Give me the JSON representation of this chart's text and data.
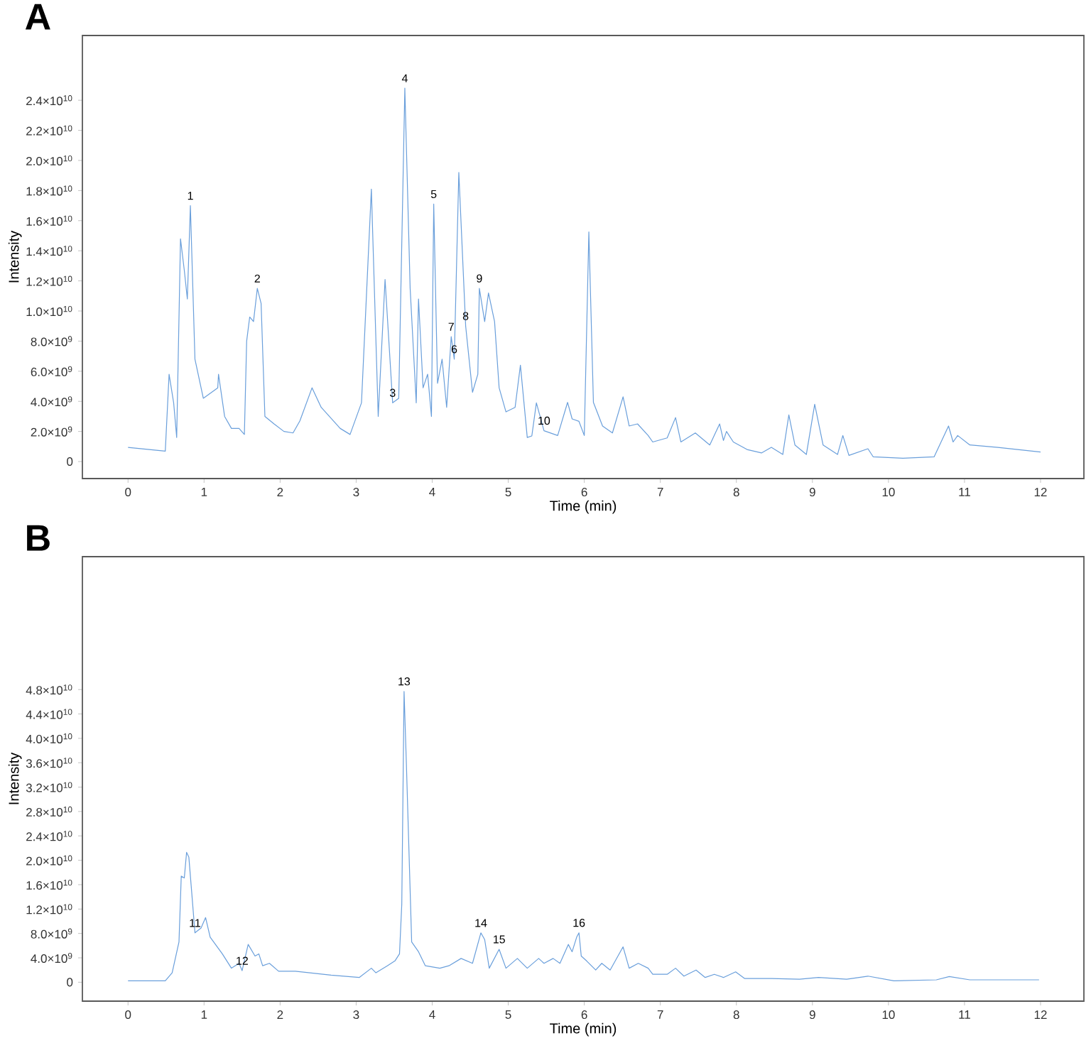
{
  "chart_data": [
    {
      "type": "line",
      "title": "A",
      "xlabel": "Time (min)",
      "ylabel": "Intensity",
      "color": "#6a9fdb",
      "x": [
        0,
        0.49,
        0.54,
        0.6,
        0.64,
        0.69,
        0.74,
        0.78,
        0.82,
        0.88,
        0.99,
        1.18,
        1.19,
        1.27,
        1.36,
        1.46,
        1.53,
        1.56,
        1.6,
        1.65,
        1.7,
        1.75,
        1.8,
        1.92,
        2.05,
        2.17,
        2.26,
        2.42,
        2.54,
        2.79,
        2.92,
        3.07,
        3.2,
        3.29,
        3.38,
        3.48,
        3.56,
        3.64,
        3.71,
        3.79,
        3.82,
        3.88,
        3.94,
        3.99,
        4.02,
        4.07,
        4.13,
        4.19,
        4.25,
        4.29,
        4.35,
        4.44,
        4.53,
        4.6,
        4.62,
        4.69,
        4.74,
        4.82,
        4.88,
        4.97,
        5.09,
        5.16,
        5.25,
        5.31,
        5.37,
        5.47,
        5.65,
        5.78,
        5.84,
        5.93,
        6.0,
        6.06,
        6.12,
        6.24,
        6.37,
        6.51,
        6.59,
        6.7,
        6.84,
        6.9,
        7.09,
        7.2,
        7.27,
        7.46,
        7.65,
        7.78,
        7.83,
        7.87,
        7.96,
        8.14,
        8.33,
        8.46,
        8.61,
        8.69,
        8.77,
        8.92,
        9.03,
        9.14,
        9.33,
        9.4,
        9.48,
        9.73,
        9.8,
        10.19,
        10.6,
        10.79,
        10.85,
        10.91,
        11.07,
        11.44,
        12
      ],
      "values": [
        940000000.0,
        690000000.0,
        5800000000.0,
        3900000000.0,
        1600000000.0,
        14800000000.0,
        12700000000.0,
        10800000000.0,
        17000000000.0,
        6800000000.0,
        4200000000.0,
        4900000000.0,
        5800000000.0,
        3000000000.0,
        2200000000.0,
        2200000000.0,
        1800000000.0,
        8000000000.0,
        9600000000.0,
        9300000000.0,
        11500000000.0,
        10500000000.0,
        3000000000.0,
        2500000000.0,
        2000000000.0,
        1900000000.0,
        2700000000.0,
        4900000000.0,
        3600000000.0,
        2200000000.0,
        1800000000.0,
        3900000000.0,
        18100000000.0,
        3000000000.0,
        12100000000.0,
        3900000000.0,
        4200000000.0,
        24800000000.0,
        11500000000.0,
        3900000000.0,
        10800000000.0,
        4900000000.0,
        5800000000.0,
        3000000000.0,
        17100000000.0,
        5200000000.0,
        6800000000.0,
        3600000000.0,
        8300000000.0,
        6800000000.0,
        19200000000.0,
        9000000000.0,
        4600000000.0,
        5800000000.0,
        11500000000.0,
        9300000000.0,
        11200000000.0,
        9300000000.0,
        4900000000.0,
        3300000000.0,
        3600000000.0,
        6400000000.0,
        1600000000.0,
        1700000000.0,
        3900000000.0,
        2050000000.0,
        1730000000.0,
        3930000000.0,
        2830000000.0,
        2670000000.0,
        1730000000.0,
        15250000000.0,
        3930000000.0,
        2360000000.0,
        1900000000.0,
        4300000000.0,
        2360000000.0,
        2500000000.0,
        1730000000.0,
        1300000000.0,
        1570000000.0,
        2920000000.0,
        1300000000.0,
        1900000000.0,
        1100000000.0,
        2500000000.0,
        1400000000.0,
        2000000000.0,
        1300000000.0,
        800000000.0,
        570000000.0,
        940000000.0,
        470000000.0,
        3100000000.0,
        1100000000.0,
        470000000.0,
        3800000000.0,
        1100000000.0,
        470000000.0,
        1730000000.0,
        410000000.0,
        850000000.0,
        310000000.0,
        220000000.0,
        310000000.0,
        2360000000.0,
        1300000000.0,
        1730000000.0,
        1100000000.0,
        940000000.0,
        630000000.0
      ],
      "xlim": [
        -0.6,
        12.57
      ],
      "ylim": [
        -1130000000.0,
        28300000000.0
      ],
      "xticks": [
        0,
        1,
        2,
        3,
        4,
        5,
        6,
        7,
        8,
        9,
        10,
        11,
        12
      ],
      "yticks": [
        0,
        {
          "value": 2000000000.0,
          "label": "2.0×10$^{9}$"
        },
        {
          "value": 4000000000.0,
          "label": "4.0×10$^{9}$"
        },
        {
          "value": 6000000000.0,
          "label": "6.0×10$^{9}$"
        },
        {
          "value": 8000000000.0,
          "label": "8.0×10$^{9}$"
        },
        {
          "value": 10000000000.0,
          "label": "1.0×10$^{10}$"
        },
        {
          "value": 12000000000.0,
          "label": "1.2×10$^{10}$"
        },
        {
          "value": 14000000000.0,
          "label": "1.4×10$^{10}$"
        },
        {
          "value": 16000000000.0,
          "label": "1.6×10$^{10}$"
        },
        {
          "value": 18000000000.0,
          "label": "1.8×10$^{10}$"
        },
        {
          "value": 20000000000.0,
          "label": "2.0×10$^{10}$"
        },
        {
          "value": 22000000000.0,
          "label": "2.2×10$^{10}$"
        },
        {
          "value": 24000000000.0,
          "label": "2.4×10$^{10}$"
        }
      ],
      "annotations": [
        {
          "text": "1",
          "x": 0.82,
          "y": 17000000000.0
        },
        {
          "text": "2",
          "x": 1.7,
          "y": 11500000000.0
        },
        {
          "text": "3",
          "x": 3.48,
          "y": 3900000000.0
        },
        {
          "text": "4",
          "x": 3.64,
          "y": 24800000000.0
        },
        {
          "text": "5",
          "x": 4.02,
          "y": 17100000000.0
        },
        {
          "text": "6",
          "x": 4.29,
          "y": 6800000000.0
        },
        {
          "text": "7",
          "x": 4.25,
          "y": 8300000000.0
        },
        {
          "text": "8",
          "x": 4.44,
          "y": 9000000000.0
        },
        {
          "text": "9",
          "x": 4.62,
          "y": 11500000000.0
        },
        {
          "text": "10",
          "x": 5.47,
          "y": 2050000000.0
        }
      ]
    },
    {
      "type": "line",
      "title": "B",
      "xlabel": "Time (min)",
      "ylabel": "Intensity",
      "color": "#6a9fdb",
      "x": [
        0,
        0.49,
        0.58,
        0.67,
        0.7,
        0.74,
        0.77,
        0.8,
        0.83,
        0.88,
        0.96,
        1.02,
        1.08,
        1.24,
        1.36,
        1.46,
        1.5,
        1.58,
        1.67,
        1.72,
        1.77,
        1.86,
        1.98,
        2.2,
        2.67,
        3.04,
        3.2,
        3.26,
        3.41,
        3.51,
        3.57,
        3.6,
        3.63,
        3.66,
        3.73,
        3.82,
        3.91,
        4.1,
        4.22,
        4.38,
        4.53,
        4.64,
        4.69,
        4.75,
        4.88,
        4.97,
        5.12,
        5.25,
        5.4,
        5.47,
        5.59,
        5.68,
        5.79,
        5.84,
        5.9,
        5.93,
        5.96,
        6.03,
        6.15,
        6.23,
        6.34,
        6.51,
        6.59,
        6.71,
        6.84,
        6.9,
        7.09,
        7.2,
        7.31,
        7.47,
        7.59,
        7.71,
        7.83,
        7.99,
        8.11,
        8.46,
        8.83,
        9.08,
        9.45,
        9.73,
        10.07,
        10.63,
        10.8,
        11.07,
        11.98
      ],
      "values": [
        230000000.0,
        230000000.0,
        1550000000.0,
        6600000000.0,
        17400000000.0,
        17100000000.0,
        21300000000.0,
        20500000000.0,
        15900000000.0,
        8100000000.0,
        8900000000.0,
        10600000000.0,
        7400000000.0,
        4650000000.0,
        2300000000.0,
        3100000000.0,
        1900000000.0,
        6200000000.0,
        4300000000.0,
        4650000000.0,
        2700000000.0,
        3100000000.0,
        1800000000.0,
        1800000000.0,
        1160000000.0,
        780000000.0,
        2300000000.0,
        1550000000.0,
        2700000000.0,
        3500000000.0,
        4650000000.0,
        12800000000.0,
        47700000000.0,
        36000000000.0,
        6600000000.0,
        5000000000.0,
        2700000000.0,
        2300000000.0,
        2700000000.0,
        3900000000.0,
        3100000000.0,
        8100000000.0,
        7000000000.0,
        2300000000.0,
        5400000000.0,
        2300000000.0,
        3900000000.0,
        2300000000.0,
        3900000000.0,
        3100000000.0,
        3900000000.0,
        3100000000.0,
        6200000000.0,
        5000000000.0,
        7400000000.0,
        8100000000.0,
        4300000000.0,
        3500000000.0,
        2000000000.0,
        3100000000.0,
        2000000000.0,
        5800000000.0,
        2300000000.0,
        3100000000.0,
        2300000000.0,
        1300000000.0,
        1300000000.0,
        2300000000.0,
        1000000000.0,
        2000000000.0,
        780000000.0,
        1300000000.0,
        780000000.0,
        1700000000.0,
        600000000.0,
        600000000.0,
        500000000.0,
        780000000.0,
        500000000.0,
        1000000000.0,
        230000000.0,
        390000000.0,
        930000000.0,
        390000000.0,
        390000000.0
      ],
      "xlim": [
        -0.6,
        12.57
      ],
      "ylim": [
        -3100000000.0,
        69800000000.0
      ],
      "xticks": [
        0,
        1,
        2,
        3,
        4,
        5,
        6,
        7,
        8,
        9,
        10,
        11,
        12
      ],
      "yticks": [
        0,
        {
          "value": 4000000000.0,
          "label": "4.0×10$^{9}$"
        },
        {
          "value": 8000000000.0,
          "label": "8.0×10$^{9}$"
        },
        {
          "value": 12000000000.0,
          "label": "1.2×10$^{10}$"
        },
        {
          "value": 16000000000.0,
          "label": "1.6×10$^{10}$"
        },
        {
          "value": 20000000000.0,
          "label": "2.0×10$^{10}$"
        },
        {
          "value": 24000000000.0,
          "label": "2.4×10$^{10}$"
        },
        {
          "value": 28000000000.0,
          "label": "2.8×10$^{10}$"
        },
        {
          "value": 32000000000.0,
          "label": "3.2×10$^{10}$"
        },
        {
          "value": 36000000000.0,
          "label": "3.6×10$^{10}$"
        },
        {
          "value": 40000000000.0,
          "label": "4.0×10$^{10}$"
        },
        {
          "value": 44000000000.0,
          "label": "4.4×10$^{10}$"
        },
        {
          "value": 48000000000.0,
          "label": "4.8×10$^{10}$"
        }
      ],
      "annotations": [
        {
          "text": "11",
          "x": 0.88,
          "y": 8100000000.0
        },
        {
          "text": "12",
          "x": 1.5,
          "y": 1900000000.0
        },
        {
          "text": "13",
          "x": 3.63,
          "y": 47700000000.0
        },
        {
          "text": "14",
          "x": 4.64,
          "y": 8100000000.0
        },
        {
          "text": "15",
          "x": 4.88,
          "y": 5400000000.0
        },
        {
          "text": "16",
          "x": 5.93,
          "y": 8100000000.0
        }
      ]
    }
  ]
}
